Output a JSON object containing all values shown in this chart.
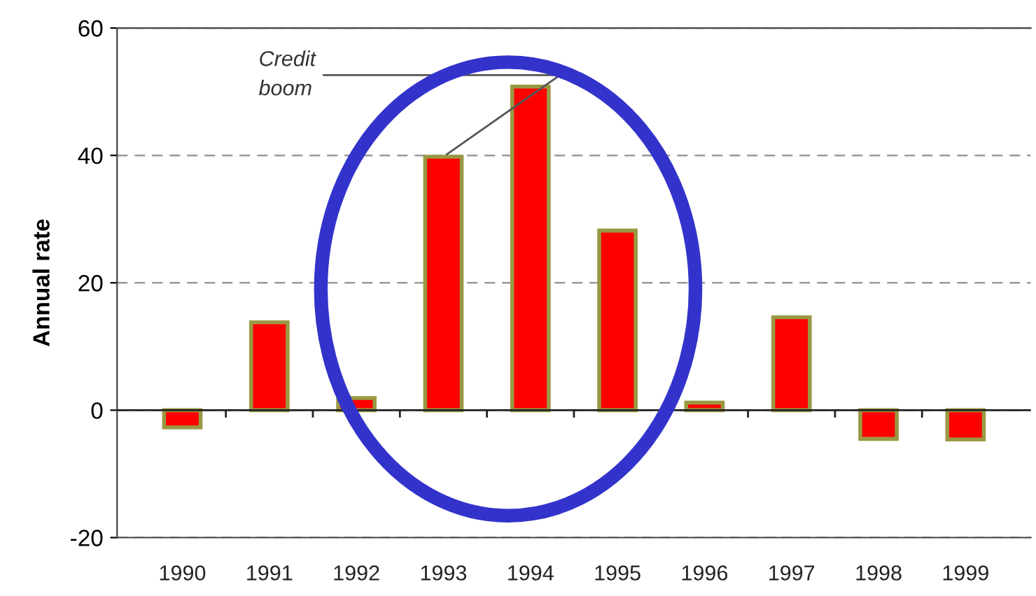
{
  "chart_data": {
    "type": "bar",
    "ylabel": "Annual rate",
    "categories": [
      "1990",
      "1991",
      "1992",
      "1993",
      "1994",
      "1995",
      "1996",
      "1997",
      "1998",
      "1999"
    ],
    "values": [
      -2.7,
      13.8,
      1.9,
      39.8,
      50.8,
      28.2,
      1.2,
      14.6,
      -4.5,
      -4.6
    ],
    "color": "#ff0000",
    "ylim": [
      -20,
      60
    ],
    "yticks": [
      -20,
      0,
      20,
      40,
      60
    ],
    "grid": "y",
    "annotations": [
      {
        "text": "Credit\nboom",
        "x": "1993",
        "y": 39.8
      }
    ]
  }
}
